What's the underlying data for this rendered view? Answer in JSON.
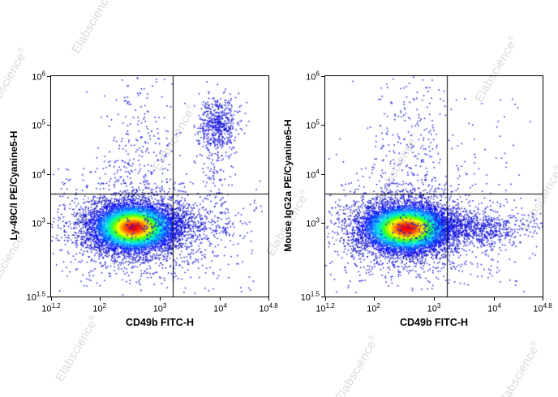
{
  "watermark": {
    "text": "Elabscience",
    "reg": "®"
  },
  "colors": {
    "background": "#ffffff",
    "frame": "#000000",
    "gate_line": "#000000",
    "scatter_point": "#1414dc",
    "watermark": "#dadada",
    "density_colormap": [
      "#000096",
      "#0000ff",
      "#0064ff",
      "#00c8ff",
      "#00ff96",
      "#64ff00",
      "#ffff00",
      "#ff7800",
      "#ff0000"
    ]
  },
  "chart_data": [
    {
      "type": "scatter",
      "subtype": "flow-cytometry-pseudocolor-density",
      "title": "",
      "xlabel": "CD49b FITC-H",
      "ylabel": "Ly-49C/I PE/Cyanine5-H",
      "x_scale": "log10",
      "y_scale": "log10",
      "grid": false,
      "legend": false,
      "xlim_log": [
        1.2,
        4.8
      ],
      "ylim_log": [
        1.5,
        6
      ],
      "tick_base": "10",
      "x_ticks": [
        {
          "exp": "1.2",
          "value": 1.2
        },
        {
          "exp": "2",
          "value": 2
        },
        {
          "exp": "3",
          "value": 3
        },
        {
          "exp": "4",
          "value": 4
        },
        {
          "exp": "4.8",
          "value": 4.8
        }
      ],
      "y_ticks": [
        {
          "exp": "1.5",
          "value": 1.5
        },
        {
          "exp": "3",
          "value": 3
        },
        {
          "exp": "4",
          "value": 4
        },
        {
          "exp": "5",
          "value": 5
        },
        {
          "exp": "6",
          "value": 6
        }
      ],
      "quadrant_gate": {
        "x_log": 3.22,
        "y_log": 3.6
      },
      "populations": [
        {
          "name": "wide-halo",
          "kind": "scatter",
          "cx": 2.5,
          "cy": 2.9,
          "sx": 0.95,
          "sy": 0.65,
          "n": 280
        },
        {
          "name": "halo",
          "kind": "scatter",
          "cx": 2.56,
          "cy": 2.92,
          "sx": 0.62,
          "sy": 0.46,
          "n": 1500
        },
        {
          "name": "main-density",
          "kind": "density",
          "cx": 2.56,
          "cy": 2.92,
          "sx": 0.34,
          "sy": 0.24,
          "n": 9000
        },
        {
          "name": "vertical-smear",
          "kind": "scatter",
          "cx": 2.66,
          "cy": 4.5,
          "sx": 0.3,
          "sy": 0.85,
          "n": 230
        },
        {
          "name": "right-smear",
          "kind": "scatter",
          "cx": 3.3,
          "cy": 2.95,
          "sx": 0.5,
          "sy": 0.2,
          "n": 330
        },
        {
          "name": "nk-cluster",
          "kind": "scatter",
          "cx": 3.95,
          "cy": 5.05,
          "sx": 0.16,
          "sy": 0.27,
          "n": 520
        },
        {
          "name": "nk-column",
          "kind": "scatter",
          "cx": 3.93,
          "cy": 4.15,
          "sx": 0.15,
          "sy": 0.55,
          "n": 130
        },
        {
          "name": "background",
          "kind": "uniform",
          "x0": 1.35,
          "x1": 4.7,
          "y0": 1.6,
          "y1": 3.5,
          "n": 110
        }
      ]
    },
    {
      "type": "scatter",
      "subtype": "flow-cytometry-pseudocolor-density",
      "title": "",
      "xlabel": "CD49b FITC-H",
      "ylabel": "Mouse IgG2a PE/Cyanine5-H",
      "x_scale": "log10",
      "y_scale": "log10",
      "grid": false,
      "legend": false,
      "xlim_log": [
        1.2,
        4.8
      ],
      "ylim_log": [
        1.5,
        6
      ],
      "tick_base": "10",
      "x_ticks": [
        {
          "exp": "1.2",
          "value": 1.2
        },
        {
          "exp": "2",
          "value": 2
        },
        {
          "exp": "3",
          "value": 3
        },
        {
          "exp": "4",
          "value": 4
        },
        {
          "exp": "4.8",
          "value": 4.8
        }
      ],
      "y_ticks": [
        {
          "exp": "1.5",
          "value": 1.5
        },
        {
          "exp": "3",
          "value": 3
        },
        {
          "exp": "4",
          "value": 4
        },
        {
          "exp": "5",
          "value": 5
        },
        {
          "exp": "6",
          "value": 6
        }
      ],
      "quadrant_gate": {
        "x_log": 3.22,
        "y_log": 3.6
      },
      "populations": [
        {
          "name": "wide-halo",
          "kind": "scatter",
          "cx": 2.5,
          "cy": 2.85,
          "sx": 0.95,
          "sy": 0.65,
          "n": 260
        },
        {
          "name": "halo",
          "kind": "scatter",
          "cx": 2.54,
          "cy": 2.88,
          "sx": 0.64,
          "sy": 0.46,
          "n": 1500
        },
        {
          "name": "main-density",
          "kind": "density",
          "cx": 2.54,
          "cy": 2.9,
          "sx": 0.36,
          "sy": 0.24,
          "n": 9000
        },
        {
          "name": "vertical-smear",
          "kind": "scatter",
          "cx": 2.6,
          "cy": 4.5,
          "sx": 0.32,
          "sy": 0.85,
          "n": 260
        },
        {
          "name": "right-smear",
          "kind": "scatter",
          "cx": 3.55,
          "cy": 2.9,
          "sx": 0.55,
          "sy": 0.18,
          "n": 850
        },
        {
          "name": "upper-right-sparse",
          "kind": "uniform",
          "x0": 3.3,
          "x1": 4.6,
          "y0": 3.7,
          "y1": 5.6,
          "n": 35
        },
        {
          "name": "background",
          "kind": "uniform",
          "x0": 1.35,
          "x1": 4.7,
          "y0": 1.6,
          "y1": 3.5,
          "n": 110
        }
      ]
    }
  ]
}
